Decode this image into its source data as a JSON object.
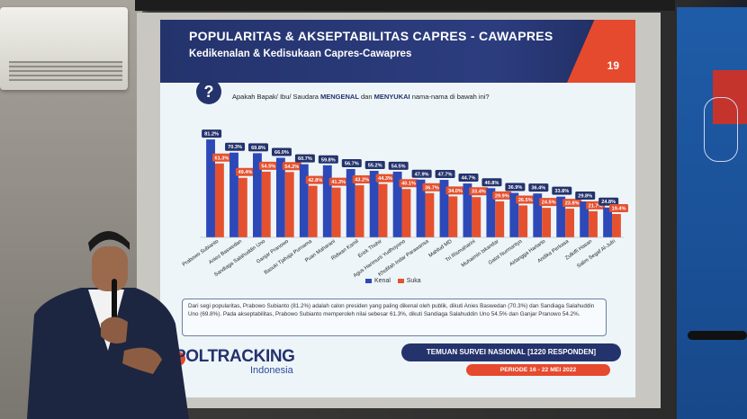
{
  "slide": {
    "title": "POPULARITAS & AKSEPTABILITAS CAPRES - CAWAPRES",
    "subtitle": "Kedikenalan & Kedisukaan Capres-Cawapres",
    "page_number": "19",
    "question_icon": "?",
    "question_prefix": "Apakah Bapak/ Ibu/ Saudara ",
    "question_kenal": "MENGENAL",
    "question_dan": " dan ",
    "question_suka": "MENYUKAI",
    "question_suffix": " nama-nama di bawah ini?",
    "note": "Dari segi popularitas, Prabowo Subianto (81.2%) adalah calon presiden yang paling dikenal oleh publik, dikuti Anies Baswedan (70.3%) dan Sandiaga Salahuddin Uno (69.8%). Pada akseptabilitas, Prabowo Subianto memperoleh nilai sebesar 61.3%, dikuti Sandiaga Salahuddin Uno 54.5% dan Ganjar Pranowo 54.2%.",
    "brand": "POLTRACKING",
    "brand_sub": "Indonesia",
    "temuan": "TEMUAN SURVEI NASIONAL [1220 RESPONDEN]",
    "periode": "PERIODE 16 - 22 MEI 2022"
  },
  "colors": {
    "kenal": "#2d49b8",
    "suka": "#e5512f",
    "navy": "#24336c"
  },
  "chart_data": {
    "type": "bar",
    "categories": [
      "Prabowo Subianto",
      "Anies Baswedan",
      "Sandiaga Salahuddin Uno",
      "Ganjar Pranowo",
      "Basuki Tjahaja Purnama",
      "Puan Maharani",
      "Ridwan Kamil",
      "Erick Thohir",
      "Agus Harimurti Yudhoyono",
      "Khofifah Indar Parawansa",
      "Mahfud MD",
      "Tri Rismaharini",
      "Muhaimin Iskandar",
      "Gatot Nurmantyo",
      "Airlangga Hartarto",
      "Andika Perkasa",
      "Zulkifli Hasan",
      "Salim Segaf Al-Jufri"
    ],
    "series": [
      {
        "name": "Kenal",
        "values": [
          81.2,
          70.3,
          69.8,
          66.0,
          60.7,
          59.8,
          56.7,
          55.2,
          54.5,
          47.9,
          47.7,
          44.7,
          40.8,
          36.9,
          36.4,
          33.8,
          29.8,
          24.8
        ]
      },
      {
        "name": "Suka",
        "values": [
          61.3,
          49.4,
          54.5,
          54.2,
          42.8,
          41.3,
          43.2,
          44.3,
          40.1,
          36.7,
          34.0,
          33.4,
          29.9,
          26.5,
          24.5,
          23.8,
          21.7,
          19.4
        ]
      }
    ],
    "value_labels": {
      "kenal": [
        "81.2%",
        "70.3%",
        "69.8%",
        "66.0%",
        "60.7%",
        "59.8%",
        "56.7%",
        "55.2%",
        "54.5%",
        "47.9%",
        "47.7%",
        "44.7%",
        "40.8%",
        "36.9%",
        "36.4%",
        "33.8%",
        "29.8%",
        "24.8%"
      ],
      "suka": [
        "61.3%",
        "49.4%",
        "54.5%",
        "54.2%",
        "42.8%",
        "41.3%",
        "43.2%",
        "44.3%",
        "40.1%",
        "36.7%",
        "34.0%",
        "33.4%",
        "29.9%",
        "26.5%",
        "24.5%",
        "23.8%",
        "21.7%",
        "19.4%"
      ]
    },
    "ylim": [
      0,
      85
    ],
    "legend_position": "bottom",
    "grid": false
  }
}
